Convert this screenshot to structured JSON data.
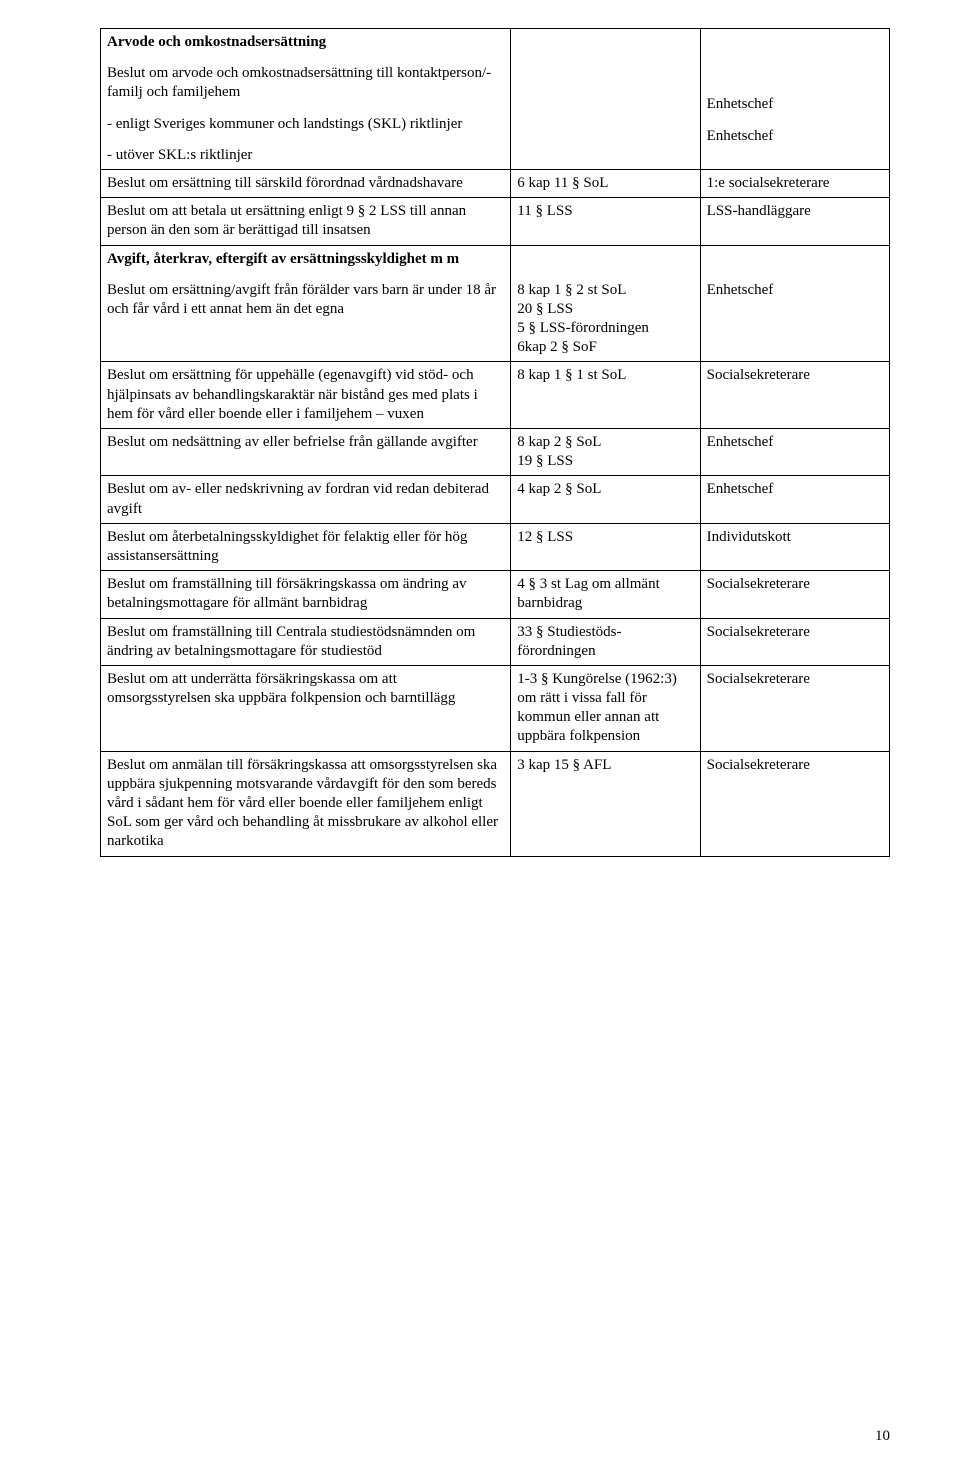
{
  "pageNumber": "10",
  "rows": [
    {
      "c1": [
        {
          "text": "Arvode och omkostnadsersättning",
          "bold": true
        },
        {
          "text": "Beslut om arvode och omkostnadsersättning till kontaktperson/-familj och familjehem"
        },
        {
          "text": "- enligt Sveriges kommuner och landstings (SKL) riktlinjer"
        },
        {
          "text": "- utöver SKL:s riktlinjer"
        }
      ],
      "c2": [
        {
          "text": ""
        }
      ],
      "c3": [
        {
          "text": ""
        },
        {
          "text": ""
        },
        {
          "text": "Enhetschef"
        },
        {
          "text": "Enhetschef"
        }
      ]
    },
    {
      "c1": [
        {
          "text": "Beslut om ersättning till särskild förordnad vårdnadshavare"
        }
      ],
      "c2": [
        {
          "text": "6 kap 11 § SoL"
        }
      ],
      "c3": [
        {
          "text": "1:e socialsekreterare"
        }
      ]
    },
    {
      "c1": [
        {
          "text": "Beslut om att betala ut ersättning enligt 9 § 2 LSS till annan person än den som är berättigad till insatsen"
        }
      ],
      "c2": [
        {
          "text": "11 § LSS"
        }
      ],
      "c3": [
        {
          "text": "LSS-handläggare"
        }
      ]
    },
    {
      "c1": [
        {
          "text": "Avgift, återkrav, eftergift av ersättningsskyldighet m m",
          "bold": true
        },
        {
          "text": "Beslut om ersättning/avgift från förälder vars barn är under 18 år och får vård i ett annat hem än det egna"
        }
      ],
      "c2": [
        {
          "text": ""
        },
        {
          "text": "8 kap 1 § 2 st SoL\n20 § LSS\n5 § LSS-förordningen\n6kap 2 § SoF"
        }
      ],
      "c3": [
        {
          "text": ""
        },
        {
          "text": "Enhetschef"
        }
      ]
    },
    {
      "c1": [
        {
          "text": "Beslut om ersättning för uppehälle (egenavgift) vid stöd- och hjälpinsats av behandlingskaraktär när bistånd ges med plats i hem för vård eller boende eller i familjehem – vuxen"
        }
      ],
      "c2": [
        {
          "text": "8 kap 1 § 1 st SoL"
        }
      ],
      "c3": [
        {
          "text": "Socialsekreterare"
        }
      ]
    },
    {
      "c1": [
        {
          "text": "Beslut om nedsättning av eller befrielse från gällande avgifter"
        }
      ],
      "c2": [
        {
          "text": "8 kap 2 § SoL\n19 § LSS"
        }
      ],
      "c3": [
        {
          "text": "Enhetschef"
        }
      ]
    },
    {
      "c1": [
        {
          "text": "Beslut om av- eller nedskrivning av fordran vid redan debiterad avgift"
        }
      ],
      "c2": [
        {
          "text": "4 kap 2 § SoL"
        }
      ],
      "c3": [
        {
          "text": "Enhetschef"
        }
      ]
    },
    {
      "c1": [
        {
          "text": "Beslut om återbetalningsskyldighet för felaktig eller för hög assistansersättning"
        }
      ],
      "c2": [
        {
          "text": "12 § LSS"
        }
      ],
      "c3": [
        {
          "text": "Individutskott"
        }
      ]
    },
    {
      "c1": [
        {
          "text": "Beslut om framställning till försäkringskassa om ändring av betalningsmottagare för allmänt barnbidrag"
        }
      ],
      "c2": [
        {
          "text": "4 § 3 st Lag om allmänt barnbidrag"
        }
      ],
      "c3": [
        {
          "text": "Socialsekreterare"
        }
      ]
    },
    {
      "c1": [
        {
          "text": "Beslut om framställning till Centrala studiestöds­nämnden om ändring av betalningsmottagare för studiestöd"
        }
      ],
      "c2": [
        {
          "text": "33 § Studiestöds­förordningen"
        }
      ],
      "c3": [
        {
          "text": "Socialsekreterare"
        }
      ]
    },
    {
      "c1": [
        {
          "text": "Beslut om att underrätta försäkringskassa om att omsorgsstyrelsen ska uppbära folkpension och barntillägg"
        }
      ],
      "c2": [
        {
          "text": "1-3 § Kungörelse (1962:3) om rätt i vissa fall för kommun eller annan att uppbära folkpension"
        }
      ],
      "c3": [
        {
          "text": "Socialsekreterare"
        }
      ]
    },
    {
      "c1": [
        {
          "text": "Beslut om anmälan till försäkringskassa att omsorgs­styrelsen ska uppbära sjukpenning motsvarande vårdavgift för den som bereds vård i sådant hem för vård eller boende eller familjehem enligt SoL som ger vård och behandling åt missbrukare av alkohol eller narkotika"
        }
      ],
      "c2": [
        {
          "text": "3 kap 15 § AFL"
        }
      ],
      "c3": [
        {
          "text": "Socialsekreterare"
        }
      ]
    }
  ]
}
